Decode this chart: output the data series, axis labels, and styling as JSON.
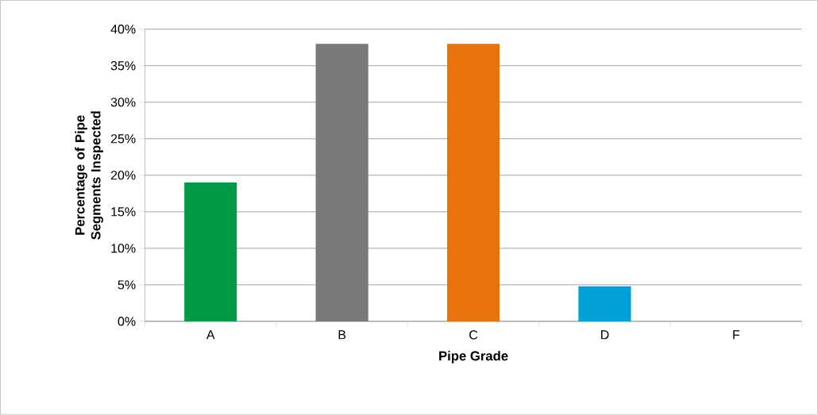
{
  "chart_data": {
    "type": "bar",
    "xlabel": "Pipe Grade",
    "ylabel": "Percentage of Pipe Segments Inspected",
    "categories": [
      "A",
      "B",
      "C",
      "D",
      "F"
    ],
    "values": [
      19,
      38,
      38,
      4.8,
      0
    ],
    "colors": [
      "#009a46",
      "#797979",
      "#e8730a",
      "#00a0d8",
      "#4472c4"
    ],
    "ylim": [
      0,
      40
    ],
    "yticks": [
      {
        "value": 0,
        "label": "0%"
      },
      {
        "value": 5,
        "label": "5%"
      },
      {
        "value": 10,
        "label": "10%"
      },
      {
        "value": 15,
        "label": "15%"
      },
      {
        "value": 20,
        "label": "20%"
      },
      {
        "value": 25,
        "label": "25%"
      },
      {
        "value": 30,
        "label": "30%"
      },
      {
        "value": 35,
        "label": "35%"
      },
      {
        "value": 40,
        "label": "40%"
      }
    ],
    "grid": "y"
  }
}
